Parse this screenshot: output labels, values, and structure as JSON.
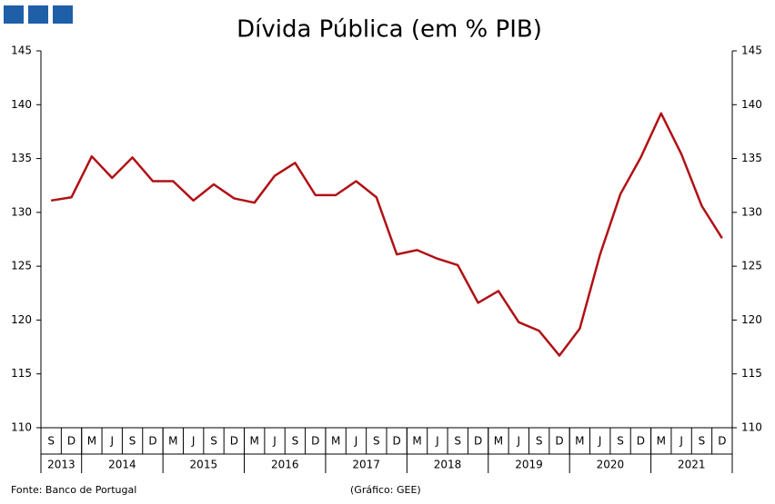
{
  "chart_data": {
    "type": "line",
    "title": "Dívida Pública (em % PIB)",
    "categories": [
      "S",
      "D",
      "M",
      "J",
      "S",
      "D",
      "M",
      "J",
      "S",
      "D",
      "M",
      "J",
      "S",
      "D",
      "M",
      "J",
      "S",
      "D",
      "M",
      "J",
      "S",
      "D",
      "M",
      "J",
      "S",
      "D",
      "M",
      "J",
      "S",
      "D",
      "M",
      "J",
      "S",
      "D"
    ],
    "year_labels": [
      "2013",
      "2014",
      "2015",
      "2016",
      "2017",
      "2018",
      "2019",
      "2020",
      "2021"
    ],
    "series": [
      {
        "color": "#b01116",
        "values": [
          131.1,
          131.4,
          135.2,
          133.2,
          135.1,
          132.9,
          132.9,
          131.1,
          132.6,
          131.3,
          130.9,
          133.4,
          134.6,
          131.6,
          131.6,
          132.9,
          131.4,
          126.1,
          126.5,
          125.7,
          125.1,
          121.6,
          122.7,
          119.8,
          119.0,
          116.7,
          119.2,
          126.1,
          131.7,
          135.1,
          139.2,
          135.4,
          130.6,
          127.6
        ]
      }
    ],
    "ylim": [
      110,
      145
    ],
    "yticks": [
      110,
      115,
      120,
      125,
      130,
      135,
      140,
      145
    ],
    "y2lim": [
      110,
      145
    ],
    "y2ticks": [
      110,
      115,
      120,
      125,
      130,
      135,
      140,
      145
    ],
    "grid": false,
    "source": "Fonte: Banco de Portugal",
    "credit": "(Gráfico: GEE)"
  }
}
